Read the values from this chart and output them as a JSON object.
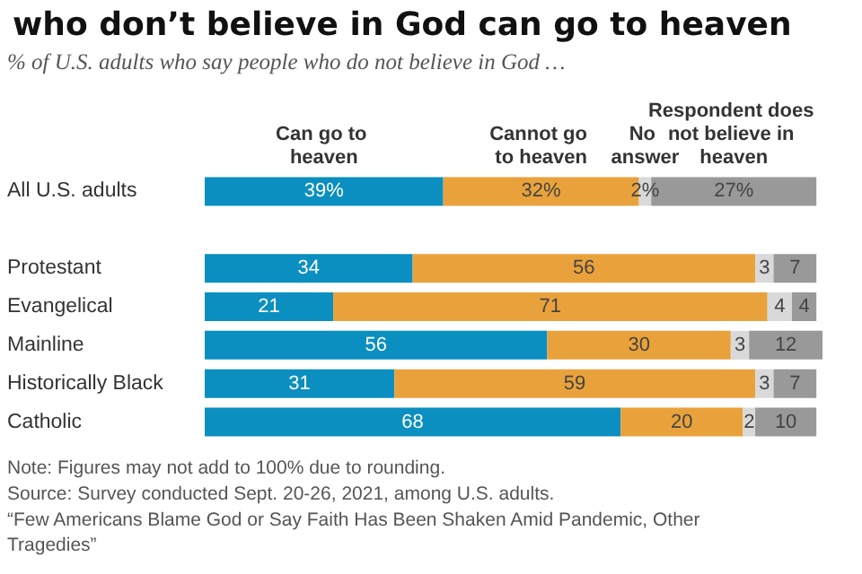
{
  "chart_data": {
    "type": "bar",
    "orientation": "horizontal",
    "stacked": true,
    "title": "who don’t believe in God can go to heaven",
    "subtitle": "% of U.S. adults who say people who do not believe in God …",
    "categories": [
      "All U.S. adults",
      null,
      "Protestant",
      "Evangelical",
      "Mainline",
      "Historically Black",
      "Catholic"
    ],
    "series": [
      {
        "name": "Can go to heaven",
        "color": "#0b8fc0",
        "values": [
          39,
          null,
          34,
          21,
          56,
          31,
          68
        ],
        "value_labels": [
          "39%",
          null,
          "34",
          "21",
          "56",
          "31",
          "68"
        ]
      },
      {
        "name": "Cannot go to heaven",
        "color": "#e9a23b",
        "values": [
          32,
          null,
          56,
          71,
          30,
          59,
          20
        ],
        "value_labels": [
          "32%",
          null,
          "56",
          "71",
          "30",
          "59",
          "20"
        ]
      },
      {
        "name": "No answer",
        "color": "#d9d9d9",
        "values": [
          2,
          null,
          3,
          4,
          3,
          3,
          2
        ],
        "value_labels": [
          "2%",
          null,
          "3",
          "4",
          "3",
          "3",
          "2"
        ]
      },
      {
        "name": "Respondent does not believe in heaven",
        "color": "#999999",
        "values": [
          27,
          null,
          7,
          4,
          12,
          7,
          10
        ],
        "value_labels": [
          "27%",
          null,
          "7",
          "4",
          "12",
          "7",
          "10"
        ]
      }
    ],
    "legend": false,
    "annotations": [
      "Note: Figures may not add to 100% due to rounding.",
      "Source: Survey conducted Sept. 20-26, 2021, among U.S. adults.",
      "“Few Americans Blame God or Say Faith Has Been Shaken Amid Pandemic, Other Tragedies”"
    ]
  }
}
